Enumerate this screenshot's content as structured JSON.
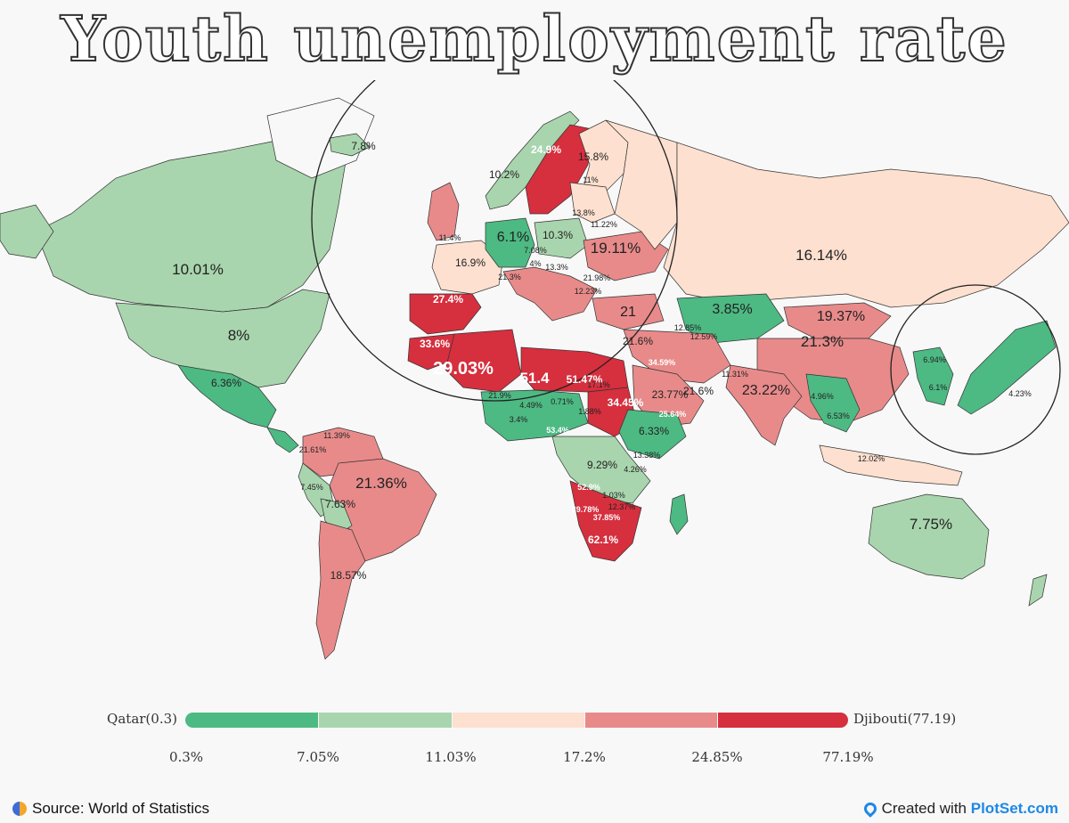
{
  "title": "Youth unemployment rate",
  "colors": {
    "background": "#f8f8f8",
    "bin1": "#4db983",
    "bin2": "#a8d5ad",
    "bin3": "#fde0cf",
    "bin4": "#e88a8a",
    "bin5": "#d62f3e"
  },
  "legend": {
    "min_label": "Qatar(0.3)",
    "max_label": "Djibouti(77.19)",
    "ticks": [
      "0.3%",
      "7.05%",
      "11.03%",
      "17.2%",
      "24.85%",
      "77.19%"
    ]
  },
  "map_labels": [
    {
      "text": "10.01%",
      "tag": "usa",
      "size": "l"
    },
    {
      "text": "8%",
      "tag": "canada-south",
      "size": "l"
    },
    {
      "text": "6.36%",
      "tag": "mexico",
      "size": "s"
    },
    {
      "text": "21.36%",
      "tag": "brazil",
      "size": "l"
    },
    {
      "text": "18.57%",
      "tag": "argentina",
      "size": "s"
    },
    {
      "text": "21.61%",
      "tag": "peru-ecuador",
      "size": "xs"
    },
    {
      "text": "7.45%",
      "tag": "peru",
      "size": "xs"
    },
    {
      "text": "7.63%",
      "tag": "bolivia",
      "size": "s"
    },
    {
      "text": "11.39%",
      "tag": "venezuela",
      "size": "xs"
    },
    {
      "text": "7.8%",
      "tag": "iceland",
      "size": "s"
    },
    {
      "text": "24.9%",
      "tag": "sweden",
      "size": "s",
      "white": true
    },
    {
      "text": "15.8%",
      "tag": "finland",
      "size": "s"
    },
    {
      "text": "10.2%",
      "tag": "norway",
      "size": "s"
    },
    {
      "text": "11%",
      "tag": "estonia",
      "size": "xs"
    },
    {
      "text": "13.8%",
      "tag": "latvia",
      "size": "xs"
    },
    {
      "text": "11.22%",
      "tag": "lithuania",
      "size": "xs"
    },
    {
      "text": "6.1%",
      "tag": "germany",
      "size": "m"
    },
    {
      "text": "10.3%",
      "tag": "poland",
      "size": "s"
    },
    {
      "text": "7.08%",
      "tag": "czechia",
      "size": "xs"
    },
    {
      "text": "19.11%",
      "tag": "ukraine",
      "size": "l"
    },
    {
      "text": "11.4%",
      "tag": "uk",
      "size": "xs"
    },
    {
      "text": "16.9%",
      "tag": "france",
      "size": "s"
    },
    {
      "text": "4%",
      "tag": "austria",
      "size": "xs"
    },
    {
      "text": "13.3%",
      "tag": "hungary",
      "size": "xs"
    },
    {
      "text": "21.98%",
      "tag": "romania",
      "size": "xs"
    },
    {
      "text": "21.3%",
      "tag": "italy",
      "size": "xs"
    },
    {
      "text": "12.23%",
      "tag": "bulgaria",
      "size": "xs"
    },
    {
      "text": "27.4%",
      "tag": "spain",
      "size": "s",
      "white": true
    },
    {
      "text": "21",
      "tag": "turkey",
      "size": "m"
    },
    {
      "text": "33.6%",
      "tag": "morocco",
      "size": "s",
      "white": true
    },
    {
      "text": "29.03%",
      "tag": "algeria",
      "size": "xl",
      "white": true
    },
    {
      "text": "51.4",
      "tag": "libya",
      "size": "l",
      "white": true
    },
    {
      "text": "16.14%",
      "tag": "russia",
      "size": "l"
    },
    {
      "text": "3.85%",
      "tag": "kazakhstan",
      "size": "m"
    },
    {
      "text": "19.37%",
      "tag": "mongolia",
      "size": "m"
    },
    {
      "text": "21.3%",
      "tag": "china",
      "size": "l"
    },
    {
      "text": "21.6%",
      "tag": "iraq",
      "size": "s"
    },
    {
      "text": "21.6%",
      "tag": "iran",
      "size": "s"
    },
    {
      "text": "12.59%",
      "tag": "uzbekistan",
      "size": "xs"
    },
    {
      "text": "12.85%",
      "tag": "georgia",
      "size": "xs"
    },
    {
      "text": "11.31%",
      "tag": "afghanistan",
      "size": "xs"
    },
    {
      "text": "23.22%",
      "tag": "india",
      "size": "m"
    },
    {
      "text": "4.96%",
      "tag": "myanmar",
      "size": "xs"
    },
    {
      "text": "6.53%",
      "tag": "thailand",
      "size": "xs"
    },
    {
      "text": "6.94%",
      "tag": "north-korea",
      "size": "xs"
    },
    {
      "text": "6.1%",
      "tag": "south-korea",
      "size": "xs"
    },
    {
      "text": "4.23%",
      "tag": "japan",
      "size": "xs"
    },
    {
      "text": "12.02%",
      "tag": "indonesia",
      "size": "xs"
    },
    {
      "text": "13.38%",
      "tag": "kenya-area",
      "size": "xs"
    },
    {
      "text": "51.47%",
      "tag": "egypt-west",
      "size": "s",
      "white": true
    },
    {
      "text": "17.1%",
      "tag": "egypt",
      "size": "xs"
    },
    {
      "text": "23.77%",
      "tag": "saudi",
      "size": "s"
    },
    {
      "text": "34.59%",
      "tag": "jordan",
      "size": "xs",
      "white": true
    },
    {
      "text": "25.64%",
      "tag": "yemen",
      "size": "xs",
      "white": true
    },
    {
      "text": "21.9%",
      "tag": "mauritania",
      "size": "xs"
    },
    {
      "text": "4.49%",
      "tag": "mali",
      "size": "xs"
    },
    {
      "text": "0.71%",
      "tag": "niger",
      "size": "xs"
    },
    {
      "text": "1.88%",
      "tag": "chad",
      "size": "xs"
    },
    {
      "text": "34.45%",
      "tag": "sudan",
      "size": "s",
      "white": true
    },
    {
      "text": "53.4%",
      "tag": "nigeria",
      "size": "xs",
      "white": true
    },
    {
      "text": "6.33%",
      "tag": "ethiopia",
      "size": "s"
    },
    {
      "text": "9.29%",
      "tag": "drc",
      "size": "s"
    },
    {
      "text": "4.26%",
      "tag": "tanzania",
      "size": "xs"
    },
    {
      "text": "1.03%",
      "tag": "zambia-east",
      "size": "xs"
    },
    {
      "text": "52.9%",
      "tag": "angola",
      "size": "xs",
      "white": true
    },
    {
      "text": "39.78%",
      "tag": "namibia",
      "size": "xs",
      "white": true
    },
    {
      "text": "37.85%",
      "tag": "botswana",
      "size": "xs",
      "white": true
    },
    {
      "text": "12.37%",
      "tag": "mozambique",
      "size": "xs"
    },
    {
      "text": "62.1%",
      "tag": "south-africa",
      "size": "s",
      "white": true
    },
    {
      "text": "7.75%",
      "tag": "australia",
      "size": "l"
    },
    {
      "text": "3.4%",
      "tag": "guinea",
      "size": "xs"
    }
  ],
  "footer": {
    "source": "Source: World of Statistics",
    "credit_prefix": "Created with ",
    "credit_brand": "PlotSet.com"
  }
}
